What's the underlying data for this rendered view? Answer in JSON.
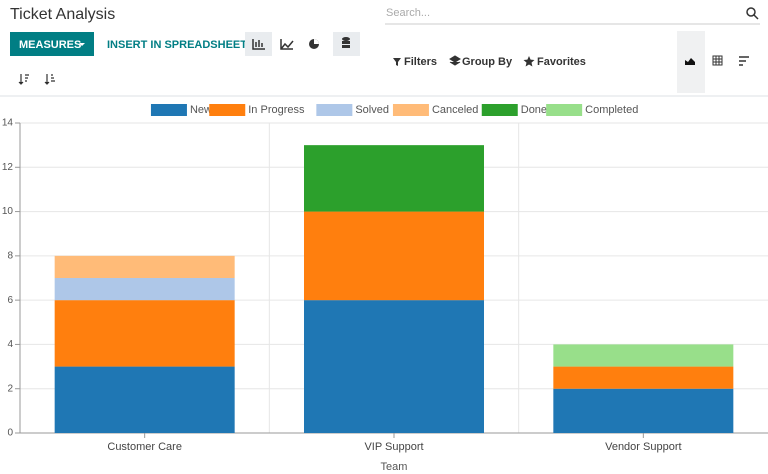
{
  "ui": {
    "title": "Ticket Analysis",
    "search_placeholder": "Search...",
    "measures": "MEASURES",
    "insert": "INSERT IN SPREADSHEET",
    "filters": "Filters",
    "group_by": "Group By",
    "favorites": "Favorites"
  },
  "chart_data": {
    "type": "bar",
    "stacked": true,
    "x_label": "Team",
    "categories": [
      "Customer Care",
      "VIP Support",
      "Vendor Support"
    ],
    "series": [
      {
        "name": "New",
        "color": "#1f77b4",
        "values": [
          3,
          6,
          2
        ]
      },
      {
        "name": "In Progress",
        "color": "#ff7f0e",
        "values": [
          3,
          4,
          1
        ]
      },
      {
        "name": "Solved",
        "color": "#aec7e8",
        "values": [
          1,
          0,
          0
        ]
      },
      {
        "name": "Canceled",
        "color": "#ffbb78",
        "values": [
          1,
          0,
          0
        ]
      },
      {
        "name": "Done",
        "color": "#2ca02c",
        "values": [
          0,
          3,
          0
        ]
      },
      {
        "name": "Completed",
        "color": "#98df8a",
        "values": [
          0,
          0,
          1
        ]
      }
    ],
    "ylim": [
      0,
      14
    ],
    "yticks": [
      0,
      2,
      4,
      6,
      8,
      10,
      12,
      14
    ],
    "grid": true,
    "legend": "top"
  }
}
